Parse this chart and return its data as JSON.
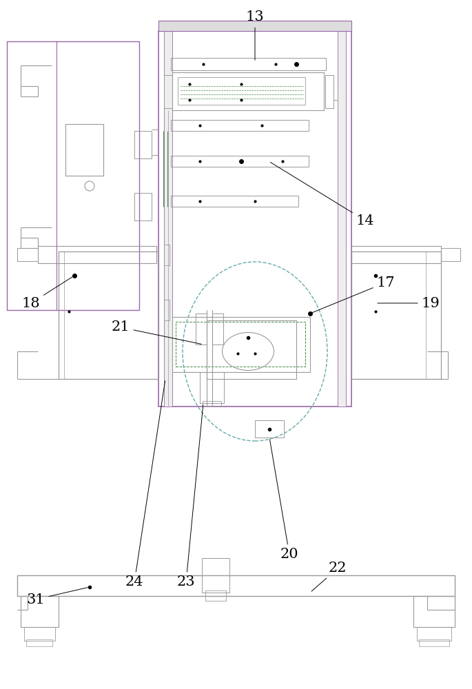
{
  "bg_color": "#ffffff",
  "line_color": "#999999",
  "purple_color": "#9966aa",
  "green_color": "#448844",
  "black": "#000000",
  "dash_color": "#66aaaa"
}
